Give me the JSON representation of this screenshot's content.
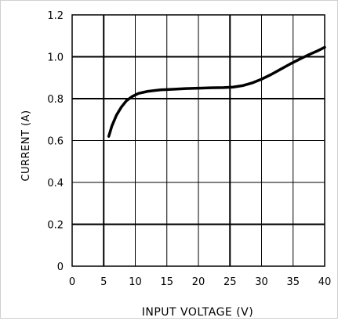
{
  "chart_data": {
    "type": "line",
    "title": "",
    "xlabel": "INPUT VOLTAGE (V)",
    "ylabel": "CURRENT (A)",
    "xlim": [
      0,
      40
    ],
    "ylim": [
      0,
      1.2
    ],
    "x_ticks": [
      0,
      5,
      10,
      15,
      20,
      25,
      30,
      35,
      40
    ],
    "x_tick_labels": [
      "0",
      "5",
      "10",
      "15",
      "20",
      "25",
      "30",
      "35",
      "40"
    ],
    "y_ticks": [
      0,
      0.2,
      0.4,
      0.6,
      0.8,
      1.0,
      1.2
    ],
    "y_tick_labels": [
      "0",
      "0.2",
      "0.4",
      "0.6",
      "0.8",
      "1.0",
      "1.2"
    ],
    "x_major_ticks": [
      5,
      25
    ],
    "y_major_ticks": [
      0.2,
      0.8,
      1.0
    ],
    "grid": true,
    "legend": "none",
    "series": [
      {
        "x": [
          5.8,
          6.3,
          7.0,
          7.8,
          8.6,
          9.5,
          10.5,
          12.0,
          14.0,
          16.0,
          18.0,
          20.0,
          22.0,
          24.0,
          25.5,
          27.0,
          28.5,
          30.0,
          31.5,
          33.0,
          34.5,
          36.0,
          37.5,
          39.0,
          40.0
        ],
        "y": [
          0.62,
          0.67,
          0.72,
          0.76,
          0.79,
          0.81,
          0.825,
          0.835,
          0.842,
          0.845,
          0.848,
          0.85,
          0.852,
          0.853,
          0.855,
          0.862,
          0.875,
          0.893,
          0.915,
          0.94,
          0.965,
          0.988,
          1.01,
          1.03,
          1.045
        ],
        "color": "#000000"
      }
    ]
  }
}
